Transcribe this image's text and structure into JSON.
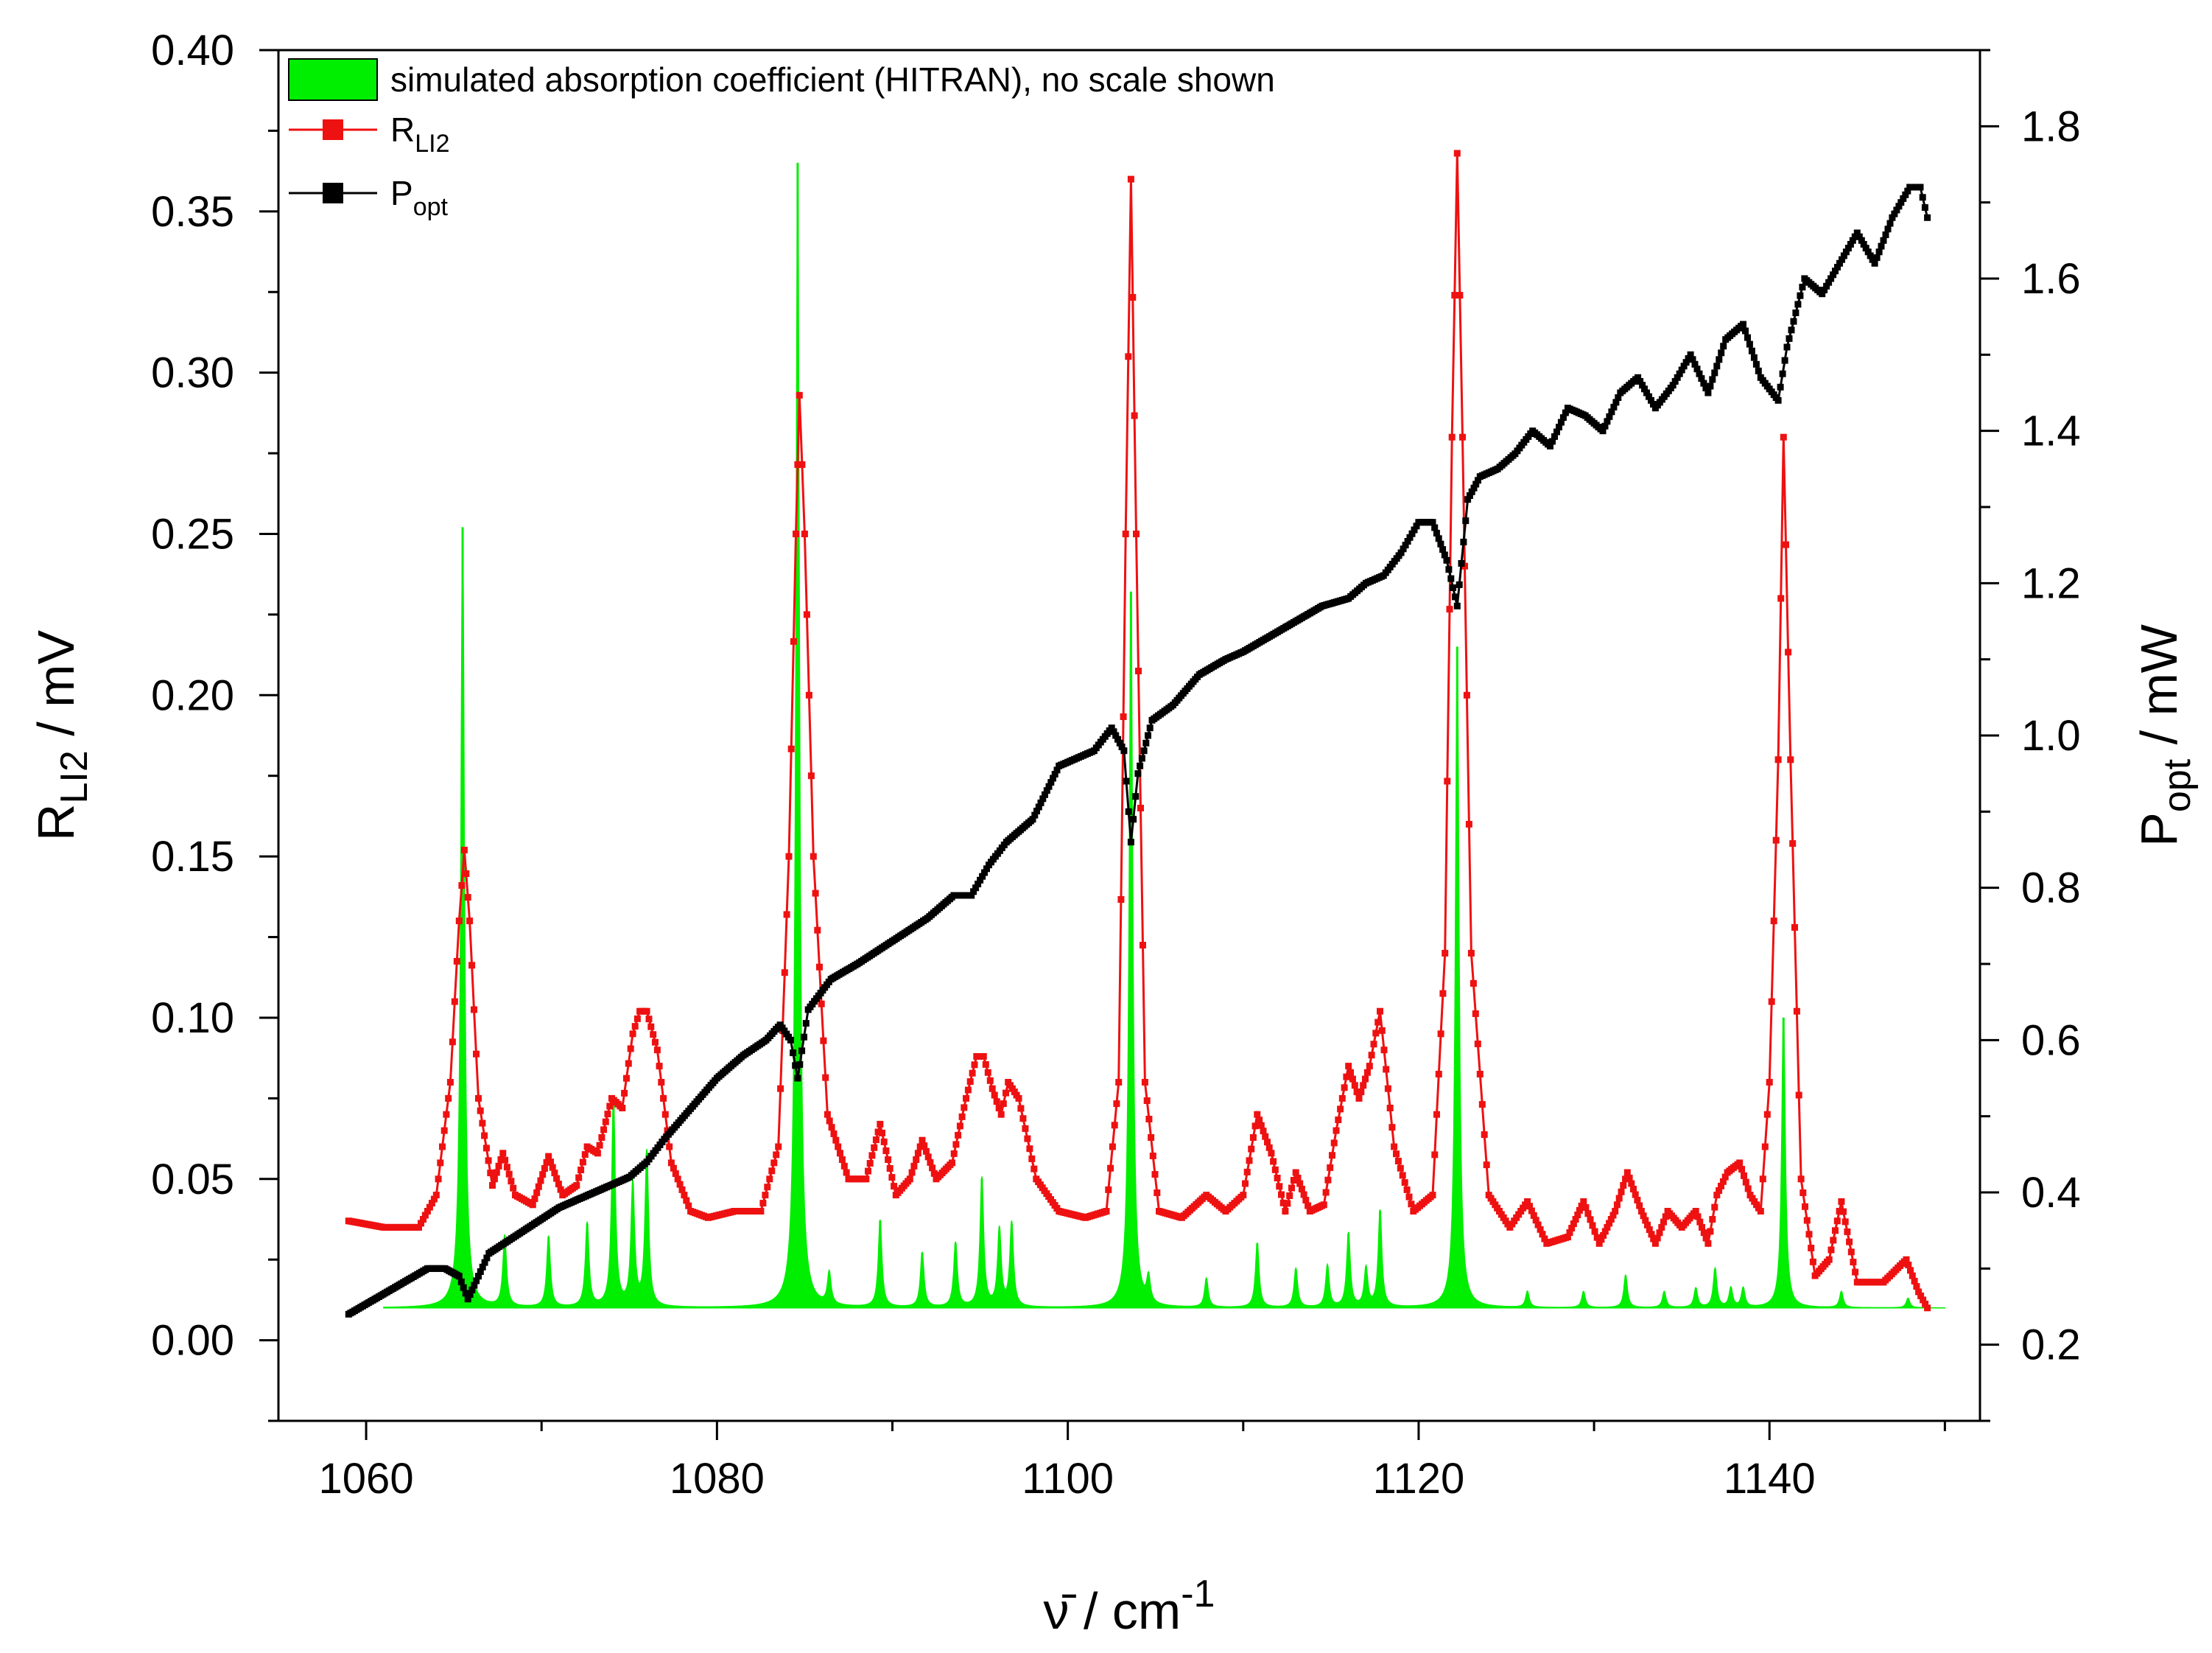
{
  "chart_data": {
    "type": "line",
    "title": "",
    "x_axis": {
      "label_main": "ν̄ / cm",
      "label_sup": "-1",
      "lim": [
        1055,
        1152
      ],
      "ticks": [
        1060,
        1080,
        1100,
        1120,
        1140
      ],
      "tick_labels": [
        "1060",
        "1080",
        "1100",
        "1120",
        "1140"
      ]
    },
    "y_axis_left": {
      "label_main": "R",
      "label_sub": "LI2",
      "label_unit": " / mV",
      "lim": [
        -0.025,
        0.4
      ],
      "ticks": [
        0.0,
        0.05,
        0.1,
        0.15,
        0.2,
        0.25,
        0.3,
        0.35,
        0.4
      ],
      "tick_labels": [
        "0.00",
        "0.05",
        "0.10",
        "0.15",
        "0.20",
        "0.25",
        "0.30",
        "0.35",
        "0.40"
      ]
    },
    "y_axis_right": {
      "label_main": "P",
      "label_sub": "opt",
      "label_unit": " / mW",
      "lim": [
        0.1,
        1.9
      ],
      "ticks": [
        0.2,
        0.4,
        0.6,
        0.8,
        1.0,
        1.2,
        1.4,
        1.6,
        1.8
      ],
      "tick_labels": [
        "0.2",
        "0.4",
        "0.6",
        "0.8",
        "1.0",
        "1.2",
        "1.4",
        "1.6",
        "1.8"
      ]
    },
    "legend": {
      "placement": "top-left",
      "entries": [
        {
          "label": "simulated absorption coefficient (HITRAN), no scale shown",
          "sub": ""
        },
        {
          "label": "R",
          "sub": "LI2"
        },
        {
          "label": "P",
          "sub": "opt"
        }
      ]
    },
    "series": [
      {
        "name": "simulated absorption coefficient (HITRAN), no scale shown",
        "kind": "filled-sticks",
        "axis": "left",
        "color": "#00ee00",
        "baseline": 0.01,
        "x_range": [
          1061,
          1150
        ],
        "peaks": [
          {
            "x": 1065.5,
            "y": 0.252
          },
          {
            "x": 1067.9,
            "y": 0.032
          },
          {
            "x": 1070.4,
            "y": 0.032
          },
          {
            "x": 1072.6,
            "y": 0.036
          },
          {
            "x": 1074.1,
            "y": 0.075
          },
          {
            "x": 1075.2,
            "y": 0.048
          },
          {
            "x": 1076.0,
            "y": 0.058
          },
          {
            "x": 1084.6,
            "y": 0.365
          },
          {
            "x": 1086.4,
            "y": 0.02
          },
          {
            "x": 1089.3,
            "y": 0.037
          },
          {
            "x": 1091.7,
            "y": 0.027
          },
          {
            "x": 1093.6,
            "y": 0.03
          },
          {
            "x": 1095.1,
            "y": 0.05
          },
          {
            "x": 1096.1,
            "y": 0.034
          },
          {
            "x": 1096.8,
            "y": 0.036
          },
          {
            "x": 1103.6,
            "y": 0.232
          },
          {
            "x": 1104.6,
            "y": 0.018
          },
          {
            "x": 1107.9,
            "y": 0.019
          },
          {
            "x": 1110.8,
            "y": 0.03
          },
          {
            "x": 1113.0,
            "y": 0.022
          },
          {
            "x": 1114.8,
            "y": 0.023
          },
          {
            "x": 1116.0,
            "y": 0.033
          },
          {
            "x": 1117.0,
            "y": 0.022
          },
          {
            "x": 1117.8,
            "y": 0.04
          },
          {
            "x": 1122.2,
            "y": 0.215
          },
          {
            "x": 1126.2,
            "y": 0.015
          },
          {
            "x": 1129.4,
            "y": 0.015
          },
          {
            "x": 1131.8,
            "y": 0.02
          },
          {
            "x": 1134.0,
            "y": 0.015
          },
          {
            "x": 1135.8,
            "y": 0.016
          },
          {
            "x": 1136.9,
            "y": 0.022
          },
          {
            "x": 1137.8,
            "y": 0.016
          },
          {
            "x": 1138.5,
            "y": 0.016
          },
          {
            "x": 1140.8,
            "y": 0.1
          },
          {
            "x": 1144.1,
            "y": 0.015
          },
          {
            "x": 1147.9,
            "y": 0.013
          }
        ]
      },
      {
        "name": "R LI2",
        "kind": "line-markers",
        "axis": "left",
        "color": "#ee1111",
        "x": [
          1059.0,
          1061.0,
          1063.0,
          1064.0,
          1064.8,
          1065.3,
          1065.6,
          1065.9,
          1066.4,
          1067.2,
          1067.8,
          1068.5,
          1069.5,
          1070.4,
          1071.2,
          1072.0,
          1072.6,
          1073.2,
          1074.0,
          1074.6,
          1075.2,
          1075.6,
          1076.0,
          1076.6,
          1077.4,
          1078.5,
          1079.5,
          1081.0,
          1082.5,
          1083.5,
          1084.1,
          1084.5,
          1084.7,
          1085.0,
          1085.5,
          1086.3,
          1087.5,
          1088.5,
          1089.3,
          1090.2,
          1091.0,
          1091.7,
          1092.5,
          1093.4,
          1094.2,
          1094.8,
          1095.2,
          1095.7,
          1096.2,
          1096.6,
          1097.2,
          1098.2,
          1099.5,
          1101.0,
          1102.2,
          1102.9,
          1103.3,
          1103.6,
          1103.9,
          1104.4,
          1105.2,
          1106.5,
          1107.9,
          1109.0,
          1110.0,
          1110.8,
          1111.6,
          1112.4,
          1113.0,
          1113.8,
          1114.6,
          1115.3,
          1116.0,
          1116.6,
          1117.2,
          1117.8,
          1118.6,
          1119.7,
          1120.8,
          1121.5,
          1121.9,
          1122.2,
          1122.5,
          1123.0,
          1124.0,
          1125.2,
          1126.2,
          1127.3,
          1128.5,
          1129.4,
          1130.3,
          1131.2,
          1131.9,
          1132.7,
          1133.5,
          1134.2,
          1135.0,
          1135.8,
          1136.5,
          1137.0,
          1137.6,
          1138.3,
          1138.9,
          1139.5,
          1140.0,
          1140.5,
          1140.8,
          1141.2,
          1141.8,
          1142.6,
          1143.4,
          1144.1,
          1145.0,
          1146.5,
          1147.8,
          1148.5,
          1149.0
        ],
        "y": [
          0.037,
          0.035,
          0.035,
          0.045,
          0.08,
          0.13,
          0.152,
          0.13,
          0.075,
          0.048,
          0.058,
          0.045,
          0.042,
          0.057,
          0.045,
          0.048,
          0.06,
          0.058,
          0.075,
          0.072,
          0.095,
          0.102,
          0.102,
          0.09,
          0.055,
          0.04,
          0.038,
          0.04,
          0.04,
          0.06,
          0.15,
          0.25,
          0.293,
          0.25,
          0.15,
          0.07,
          0.05,
          0.05,
          0.067,
          0.045,
          0.05,
          0.062,
          0.05,
          0.055,
          0.075,
          0.088,
          0.088,
          0.078,
          0.07,
          0.08,
          0.075,
          0.05,
          0.04,
          0.038,
          0.04,
          0.08,
          0.25,
          0.36,
          0.25,
          0.08,
          0.04,
          0.038,
          0.045,
          0.04,
          0.045,
          0.07,
          0.058,
          0.04,
          0.052,
          0.04,
          0.042,
          0.065,
          0.085,
          0.075,
          0.085,
          0.102,
          0.06,
          0.04,
          0.045,
          0.12,
          0.28,
          0.368,
          0.28,
          0.12,
          0.045,
          0.035,
          0.043,
          0.03,
          0.032,
          0.043,
          0.03,
          0.04,
          0.052,
          0.04,
          0.03,
          0.04,
          0.035,
          0.04,
          0.03,
          0.045,
          0.052,
          0.055,
          0.045,
          0.04,
          0.08,
          0.18,
          0.28,
          0.18,
          0.05,
          0.02,
          0.025,
          0.043,
          0.018,
          0.018,
          0.025,
          0.015,
          0.01
        ]
      },
      {
        "name": "P opt",
        "kind": "line-markers",
        "axis": "right",
        "color": "#000000",
        "x": [
          1059.0,
          1060.5,
          1062.0,
          1063.5,
          1064.5,
          1065.3,
          1065.8,
          1067.0,
          1069.0,
          1071.0,
          1073.0,
          1075.0,
          1076.0,
          1077.0,
          1078.5,
          1080.0,
          1081.5,
          1082.8,
          1083.6,
          1084.2,
          1084.6,
          1085.2,
          1086.5,
          1088.0,
          1090.0,
          1092.0,
          1093.5,
          1094.5,
          1095.5,
          1096.5,
          1098.0,
          1099.5,
          1100.5,
          1101.5,
          1102.5,
          1103.2,
          1103.6,
          1104.0,
          1104.8,
          1106.0,
          1107.5,
          1109.0,
          1110.0,
          1111.5,
          1113.0,
          1114.5,
          1116.0,
          1117.0,
          1118.0,
          1119.0,
          1120.0,
          1120.8,
          1121.6,
          1122.2,
          1122.8,
          1123.5,
          1124.5,
          1125.5,
          1126.5,
          1127.5,
          1128.5,
          1129.5,
          1130.5,
          1131.5,
          1132.5,
          1133.5,
          1134.5,
          1135.5,
          1136.5,
          1137.5,
          1138.5,
          1139.5,
          1140.5,
          1141.0,
          1142.0,
          1143.0,
          1144.0,
          1145.0,
          1146.0,
          1147.0,
          1148.0,
          1148.6,
          1149.0
        ],
        "y": [
          0.24,
          0.26,
          0.28,
          0.3,
          0.3,
          0.29,
          0.26,
          0.32,
          0.35,
          0.38,
          0.4,
          0.42,
          0.44,
          0.47,
          0.51,
          0.55,
          0.58,
          0.6,
          0.62,
          0.6,
          0.55,
          0.64,
          0.68,
          0.7,
          0.73,
          0.76,
          0.79,
          0.79,
          0.83,
          0.86,
          0.89,
          0.96,
          0.97,
          0.98,
          1.01,
          0.98,
          0.86,
          0.95,
          1.02,
          1.04,
          1.08,
          1.1,
          1.11,
          1.13,
          1.15,
          1.17,
          1.18,
          1.2,
          1.21,
          1.24,
          1.28,
          1.28,
          1.23,
          1.17,
          1.31,
          1.34,
          1.35,
          1.37,
          1.4,
          1.38,
          1.43,
          1.42,
          1.4,
          1.45,
          1.47,
          1.43,
          1.46,
          1.5,
          1.45,
          1.52,
          1.54,
          1.47,
          1.44,
          1.51,
          1.6,
          1.58,
          1.62,
          1.66,
          1.62,
          1.68,
          1.72,
          1.72,
          1.68
        ]
      }
    ]
  }
}
